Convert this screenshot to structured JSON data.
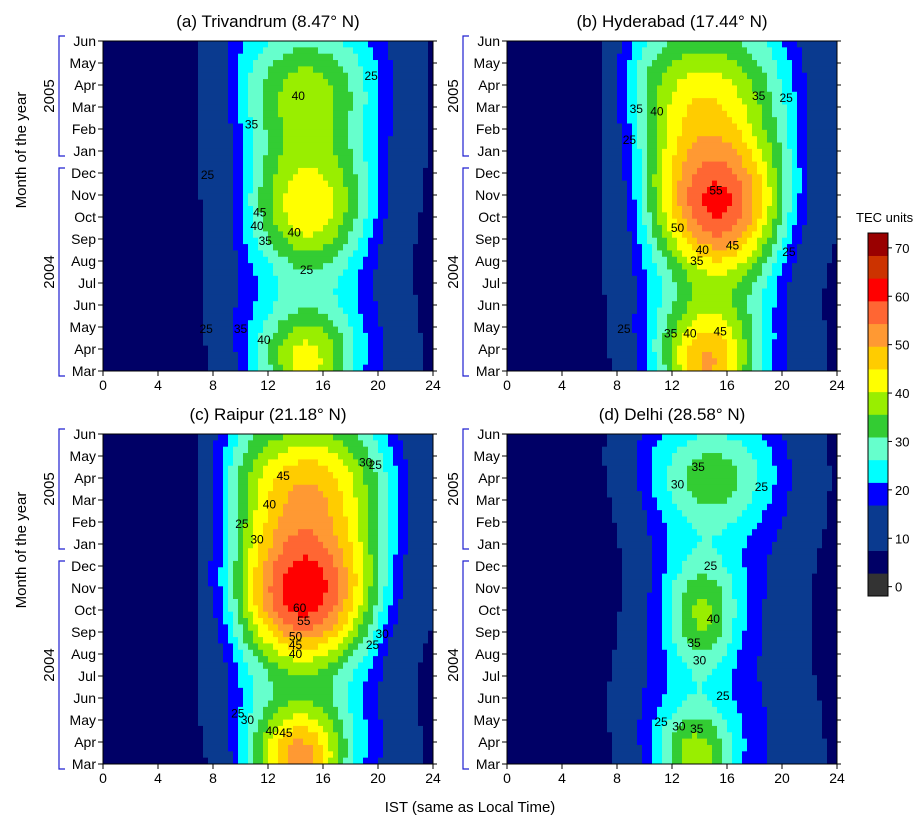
{
  "chart_data": [
    {
      "type": "heatmap",
      "title": "(a) Trivandrum (8.47° N)",
      "x_ticks": [
        0,
        4,
        8,
        12,
        16,
        20,
        24
      ],
      "y_ticks": [
        "Mar",
        "Apr",
        "May",
        "Jun",
        "Jul",
        "Aug",
        "Sep",
        "Oct",
        "Nov",
        "Dec",
        "Jan",
        "Feb",
        "Mar",
        "Apr",
        "May",
        "Jun"
      ],
      "year_groups": [
        {
          "label": "2004",
          "from": 0,
          "to": 9
        },
        {
          "label": "2005",
          "from": 10,
          "to": 15
        }
      ],
      "blobs": [
        {
          "x": 14.8,
          "y": 12.7,
          "peak": 42,
          "sx": 2.8,
          "sy": 2.2
        },
        {
          "x": 15.0,
          "y": 7.3,
          "peak": 48,
          "sx": 3.2,
          "sy": 2.2
        },
        {
          "x": 14.8,
          "y": 0.5,
          "peak": 47,
          "sx": 3.4,
          "sy": 1.8
        }
      ],
      "contour_labels": [
        {
          "v": "40",
          "x": 14.2,
          "y": 12.5
        },
        {
          "v": "35",
          "x": 10.8,
          "y": 11.2
        },
        {
          "v": "25",
          "x": 19.5,
          "y": 13.4
        },
        {
          "v": "25",
          "x": 7.6,
          "y": 8.9
        },
        {
          "v": "45",
          "x": 11.4,
          "y": 7.2
        },
        {
          "v": "40",
          "x": 11.2,
          "y": 6.6
        },
        {
          "v": "40",
          "x": 13.9,
          "y": 6.3
        },
        {
          "v": "35",
          "x": 11.8,
          "y": 5.9
        },
        {
          "v": "25",
          "x": 14.8,
          "y": 4.6
        },
        {
          "v": "35",
          "x": 10.0,
          "y": 1.9
        },
        {
          "v": "40",
          "x": 11.7,
          "y": 1.4
        },
        {
          "v": "25",
          "x": 7.5,
          "y": 1.9
        }
      ]
    },
    {
      "type": "heatmap",
      "title": "(b) Hyderabad (17.44° N)",
      "x_ticks": [
        0,
        4,
        8,
        12,
        16,
        20,
        24
      ],
      "y_ticks": [
        "Mar",
        "Apr",
        "May",
        "Jun",
        "Jul",
        "Aug",
        "Sep",
        "Oct",
        "Nov",
        "Dec",
        "Jan",
        "Feb",
        "Mar",
        "Apr",
        "May",
        "Jun"
      ],
      "year_groups": [
        {
          "label": "2004",
          "from": 0,
          "to": 9
        },
        {
          "label": "2005",
          "from": 10,
          "to": 15
        }
      ],
      "blobs": [
        {
          "x": 14.3,
          "y": 12.6,
          "peak": 46,
          "sx": 3.4,
          "sy": 2.6
        },
        {
          "x": 15.4,
          "y": 7.3,
          "peak": 63,
          "sx": 3.6,
          "sy": 2.4
        },
        {
          "x": 14.6,
          "y": 0.4,
          "peak": 55,
          "sx": 3.4,
          "sy": 2.0
        }
      ],
      "contour_labels": [
        {
          "v": "35",
          "x": 9.4,
          "y": 11.9
        },
        {
          "v": "40",
          "x": 10.9,
          "y": 11.8
        },
        {
          "v": "35",
          "x": 18.3,
          "y": 12.5
        },
        {
          "v": "25",
          "x": 20.3,
          "y": 12.4
        },
        {
          "v": "25",
          "x": 8.9,
          "y": 10.5
        },
        {
          "v": "55",
          "x": 15.2,
          "y": 8.2
        },
        {
          "v": "50",
          "x": 12.4,
          "y": 6.5
        },
        {
          "v": "45",
          "x": 16.4,
          "y": 5.7
        },
        {
          "v": "40",
          "x": 14.2,
          "y": 5.5
        },
        {
          "v": "35",
          "x": 13.8,
          "y": 5.0
        },
        {
          "v": "25",
          "x": 20.5,
          "y": 5.4
        },
        {
          "v": "25",
          "x": 8.5,
          "y": 1.9
        },
        {
          "v": "35",
          "x": 11.9,
          "y": 1.7
        },
        {
          "v": "40",
          "x": 13.3,
          "y": 1.7
        },
        {
          "v": "45",
          "x": 15.5,
          "y": 1.8
        }
      ]
    },
    {
      "type": "heatmap",
      "title": "(c) Raipur (21.18° N)",
      "x_ticks": [
        0,
        4,
        8,
        12,
        16,
        20,
        24
      ],
      "y_ticks": [
        "Mar",
        "Apr",
        "May",
        "Jun",
        "Jul",
        "Aug",
        "Sep",
        "Oct",
        "Nov",
        "Dec",
        "Jan",
        "Feb",
        "Mar",
        "Apr",
        "May",
        "Jun"
      ],
      "year_groups": [
        {
          "label": "2004",
          "from": 0,
          "to": 9
        },
        {
          "label": "2005",
          "from": 10,
          "to": 15
        }
      ],
      "blobs": [
        {
          "x": 14.8,
          "y": 12.8,
          "peak": 51,
          "sx": 3.4,
          "sy": 2.4
        },
        {
          "x": 14.6,
          "y": 7.5,
          "peak": 66,
          "sx": 3.8,
          "sy": 2.4
        },
        {
          "x": 14.3,
          "y": 0.3,
          "peak": 57,
          "sx": 3.4,
          "sy": 1.8
        }
      ],
      "contour_labels": [
        {
          "v": "45",
          "x": 13.1,
          "y": 13.1
        },
        {
          "v": "40",
          "x": 12.1,
          "y": 11.8
        },
        {
          "v": "30",
          "x": 19.1,
          "y": 13.7
        },
        {
          "v": "25",
          "x": 19.8,
          "y": 13.6
        },
        {
          "v": "25",
          "x": 10.1,
          "y": 10.9
        },
        {
          "v": "30",
          "x": 11.2,
          "y": 10.2
        },
        {
          "v": "60",
          "x": 14.3,
          "y": 7.1
        },
        {
          "v": "55",
          "x": 14.6,
          "y": 6.5
        },
        {
          "v": "50",
          "x": 14.0,
          "y": 5.8
        },
        {
          "v": "45",
          "x": 14.0,
          "y": 5.4
        },
        {
          "v": "40",
          "x": 14.0,
          "y": 5.0
        },
        {
          "v": "30",
          "x": 20.3,
          "y": 5.9
        },
        {
          "v": "25",
          "x": 19.6,
          "y": 5.4
        },
        {
          "v": "25",
          "x": 9.8,
          "y": 2.3
        },
        {
          "v": "30",
          "x": 10.5,
          "y": 2.0
        },
        {
          "v": "40",
          "x": 12.3,
          "y": 1.5
        },
        {
          "v": "45",
          "x": 13.3,
          "y": 1.4
        }
      ]
    },
    {
      "type": "heatmap",
      "title": "(d) Delhi (28.58° N)",
      "x_ticks": [
        0,
        4,
        8,
        12,
        16,
        20,
        24
      ],
      "y_ticks": [
        "Mar",
        "Apr",
        "May",
        "Jun",
        "Jul",
        "Aug",
        "Sep",
        "Oct",
        "Nov",
        "Dec",
        "Jan",
        "Feb",
        "Mar",
        "Apr",
        "May",
        "Jun"
      ],
      "year_groups": [
        {
          "label": "2004",
          "from": 0,
          "to": 9
        },
        {
          "label": "2005",
          "from": 10,
          "to": 15
        }
      ],
      "blobs": [
        {
          "x": 15.0,
          "y": 13.0,
          "peak": 38,
          "sx": 2.5,
          "sy": 1.8
        },
        {
          "x": 14.2,
          "y": 6.8,
          "peak": 41,
          "sx": 2.0,
          "sy": 2.0
        },
        {
          "x": 13.7,
          "y": 0.3,
          "peak": 43,
          "sx": 2.8,
          "sy": 1.8
        }
      ],
      "contour_labels": [
        {
          "v": "35",
          "x": 13.9,
          "y": 13.5
        },
        {
          "v": "30",
          "x": 12.4,
          "y": 12.7
        },
        {
          "v": "25",
          "x": 18.5,
          "y": 12.6
        },
        {
          "v": "25",
          "x": 14.8,
          "y": 9.0
        },
        {
          "v": "40",
          "x": 15.0,
          "y": 6.6
        },
        {
          "v": "35",
          "x": 13.6,
          "y": 5.5
        },
        {
          "v": "30",
          "x": 14.0,
          "y": 4.7
        },
        {
          "v": "25",
          "x": 15.7,
          "y": 3.1
        },
        {
          "v": "25",
          "x": 11.2,
          "y": 1.9
        },
        {
          "v": "30",
          "x": 12.5,
          "y": 1.7
        },
        {
          "v": "35",
          "x": 13.8,
          "y": 1.6
        }
      ]
    }
  ],
  "axes": {
    "xlabel": "IST (same as Local Time)",
    "ylabel": "Month of the year",
    "year_2004": "2004",
    "year_2005": "2005"
  },
  "colorbar": {
    "title": "TEC units",
    "levels": [
      0,
      5,
      10,
      15,
      20,
      25,
      30,
      35,
      40,
      45,
      50,
      55,
      60,
      65,
      70,
      75
    ],
    "tick_labels": [
      "0",
      "10",
      "20",
      "30",
      "40",
      "50",
      "60",
      "70"
    ],
    "colors": [
      "#333333",
      "#000066",
      "#0a3a8f",
      "#0a3a8f",
      "#0000ff",
      "#00ffff",
      "#66ffcc",
      "#33cc33",
      "#99ee00",
      "#ffff00",
      "#ffcc00",
      "#ff9933",
      "#ff6633",
      "#ff0000",
      "#cc3300",
      "#990000"
    ]
  }
}
